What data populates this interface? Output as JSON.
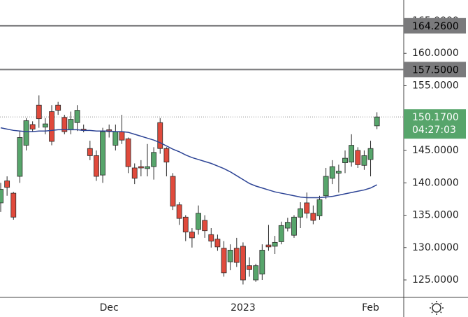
{
  "chart_data": {
    "type": "candlestick",
    "categories": [
      null,
      null,
      null,
      null,
      null,
      null,
      null,
      null,
      null,
      null,
      null,
      null,
      null,
      null,
      null,
      null,
      null,
      "Dec",
      null,
      null,
      null,
      null,
      null,
      null,
      null,
      null,
      null,
      null,
      null,
      null,
      null,
      null,
      null,
      null,
      null,
      null,
      null,
      null,
      "2023",
      null,
      null,
      null,
      null,
      null,
      null,
      null,
      null,
      null,
      null,
      null,
      null,
      null,
      null,
      null,
      null,
      null,
      null,
      null,
      "Feb",
      null
    ],
    "open": [
      136.9,
      140.3,
      138.4,
      141,
      145.8,
      149,
      152,
      148.6,
      151,
      152,
      150.1,
      148.2,
      149.3,
      148.3,
      145.3,
      144.2,
      141.2,
      148.2,
      145.8,
      147.9,
      146.8,
      142.3,
      142.5,
      142.2,
      142.5,
      149.3,
      145.3,
      141,
      136.6,
      134.7,
      132.4,
      132.8,
      134.2,
      132,
      131.3,
      129.9,
      127.8,
      129.9,
      130.2,
      127.2,
      125,
      125.9,
      130.4,
      130.2,
      130.9,
      133,
      131.9,
      134.7,
      136.9,
      135.3,
      134.9,
      138,
      140.7,
      141.5,
      143.1,
      143.2,
      145,
      142.7,
      143.6,
      148.8
    ],
    "high": [
      140,
      141,
      138.6,
      148,
      150,
      149.5,
      153.5,
      150,
      152,
      152.5,
      150.5,
      151,
      152,
      149,
      146.5,
      145,
      148.5,
      149,
      149,
      150.5,
      147,
      143,
      143.5,
      146,
      145.5,
      150,
      145.5,
      141.5,
      137,
      135,
      133,
      136.5,
      135,
      133,
      132,
      131,
      130.5,
      131.5,
      130.8,
      128.5,
      127.5,
      130.5,
      133.5,
      131.8,
      134,
      134.6,
      135,
      137,
      138.5,
      136.5,
      138,
      142.3,
      143.5,
      142.8,
      145,
      147.5,
      145.5,
      145,
      146.5,
      150.9
    ],
    "low": [
      135.5,
      138,
      134.3,
      140,
      145,
      147.9,
      148.5,
      147.5,
      145.8,
      150.5,
      147.5,
      147.5,
      148,
      147.8,
      143.5,
      140.3,
      140,
      147,
      145,
      146,
      141.5,
      139.8,
      141,
      141,
      140.5,
      144.5,
      141,
      135.8,
      133.5,
      131,
      130,
      132,
      131.5,
      130,
      129.5,
      125.5,
      126.5,
      127,
      124.3,
      125.5,
      124.7,
      125,
      129.5,
      129,
      130.5,
      132.5,
      131.5,
      133,
      134.5,
      133.6,
      134.3,
      137.5,
      139.8,
      138.5,
      141.5,
      142.5,
      142.3,
      142,
      141,
      148.3
    ],
    "close": [
      139,
      139.3,
      134.7,
      147,
      149.6,
      148.3,
      149.9,
      149.1,
      146.4,
      151.2,
      147.9,
      149.8,
      151.2,
      148.1,
      144.2,
      141,
      147.9,
      147.9,
      147.9,
      146.6,
      142.5,
      140.7,
      142.3,
      142.5,
      144.7,
      145.3,
      143.2,
      136.4,
      134.5,
      132.4,
      131.5,
      135.3,
      132.6,
      131,
      130.1,
      126.1,
      129.6,
      127.7,
      125,
      126.6,
      127.2,
      129.6,
      130.1,
      130.8,
      133.4,
      133.9,
      134.7,
      136,
      135.3,
      134.2,
      137.4,
      141,
      142.5,
      141.8,
      143.8,
      145.8,
      142.8,
      144.2,
      145.3,
      150.17
    ],
    "up_color": "#57a56b",
    "down_color": "#e04a3c",
    "wick_color": "#2a2a2a",
    "moving_average": {
      "color": "#2e4596",
      "values": [
        148.5,
        148.3,
        148.1,
        148.0,
        147.9,
        147.9,
        148.0,
        148.0,
        148.1,
        148.2,
        148.2,
        148.2,
        148.2,
        148.1,
        148.1,
        148.0,
        148.0,
        148.0,
        147.9,
        147.9,
        147.8,
        147.5,
        147.2,
        146.9,
        146.6,
        146.2,
        145.7,
        145.2,
        144.8,
        144.3,
        143.9,
        143.6,
        143.3,
        143.0,
        142.6,
        142.2,
        141.7,
        141.1,
        140.5,
        139.9,
        139.5,
        139.2,
        138.9,
        138.6,
        138.4,
        138.2,
        138.0,
        137.8,
        137.7,
        137.7,
        137.7,
        137.8,
        137.9,
        138.1,
        138.3,
        138.5,
        138.7,
        138.9,
        139.2,
        139.7
      ]
    },
    "levels": [
      {
        "value": 164.26,
        "label": "164.2600"
      },
      {
        "value": 157.5,
        "label": "157.5000"
      }
    ],
    "level_color": "#7a7a7c",
    "last_price": {
      "value": 150.17,
      "label": "150.1700"
    },
    "countdown": "04:27:03",
    "ylim": [
      122.3,
      168.24
    ],
    "yticks": [
      {
        "value": 125,
        "label": "125.0000"
      },
      {
        "value": 130,
        "label": "130.0000"
      },
      {
        "value": 135,
        "label": "135.0000"
      },
      {
        "value": 140,
        "label": "140.0000"
      },
      {
        "value": 145,
        "label": "145.0000"
      },
      {
        "value": 150,
        "label": "150.0000"
      },
      {
        "value": 155,
        "label": "155.0000"
      },
      {
        "value": 160,
        "label": "160.0000"
      },
      {
        "value": 165,
        "label": "165.0000"
      }
    ]
  }
}
